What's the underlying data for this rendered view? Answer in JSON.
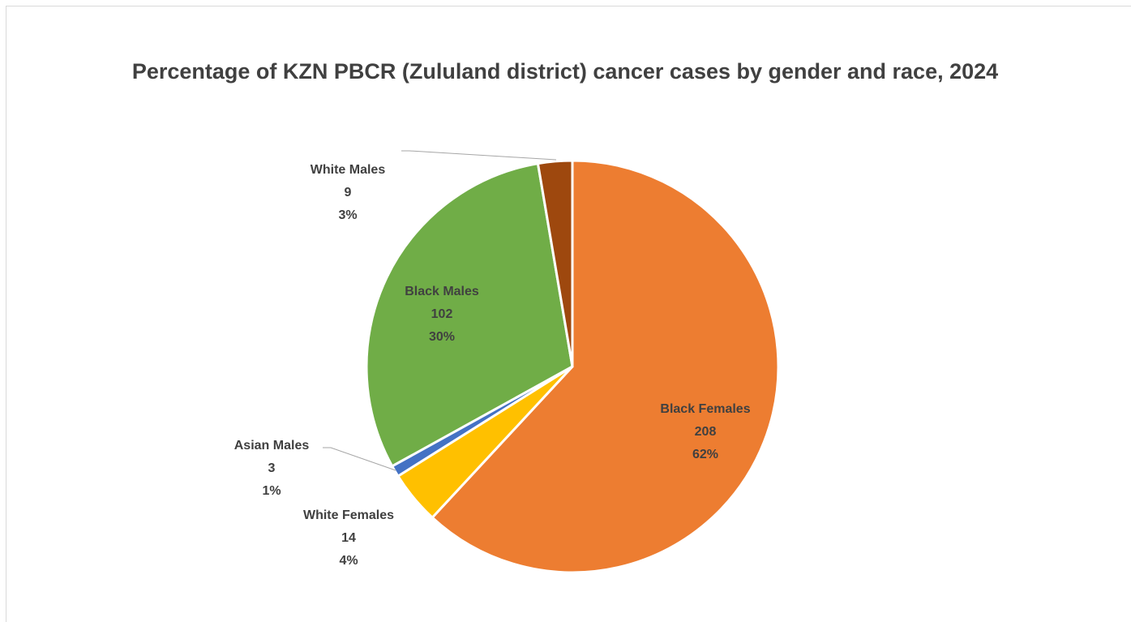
{
  "chart_data": {
    "type": "pie",
    "title": "Percentage of KZN PBCR (Zululand district) cancer cases by gender and race, 2024",
    "categories": [
      "Black Females",
      "White Females",
      "Asian Males",
      "Black Males",
      "White Males"
    ],
    "values": [
      208,
      14,
      3,
      102,
      9
    ],
    "percent_labels": [
      "62%",
      "4%",
      "1%",
      "30%",
      "3%"
    ],
    "colors": [
      "#ED7D31",
      "#FFC000",
      "#4472C4",
      "#70AD47",
      "#9E480E"
    ]
  }
}
